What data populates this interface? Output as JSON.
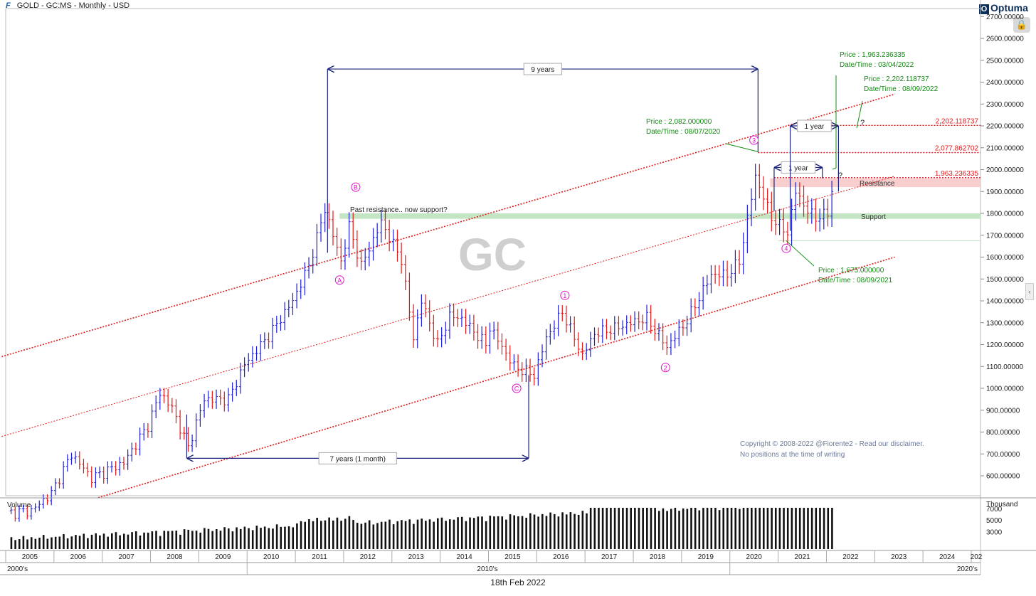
{
  "header": {
    "title": "GOLD - GC:MS - Monthly - USD",
    "brand": "Optuma",
    "brand_icon": "optuma-logo-icon",
    "lock_icon": "lock-icon",
    "collapse_icon": "chevron-left-icon",
    "collapse_glyph": "‹"
  },
  "colors": {
    "up_bar": "#1f1fd6",
    "down_bar": "#e01818",
    "channel": "#e01818",
    "measure": "#1a237e",
    "annotation_green": "#138a13",
    "wave_label": "#e010c8",
    "support_zone": "#b9e0b9",
    "resistance_zone": "#f8c6c6"
  },
  "watermark": "GC",
  "footer": {
    "date": "18th Feb 2022"
  },
  "chart_data": {
    "type": "ohlc",
    "title": "GOLD - GC:MS - Monthly - USD",
    "price_axis": {
      "ylim": [
        500,
        2720
      ],
      "ticks": [
        600,
        700,
        800,
        900,
        1000,
        1100,
        1200,
        1300,
        1400,
        1500,
        1600,
        1700,
        1800,
        1900,
        2000,
        2100,
        2200,
        2300,
        2400,
        2500,
        2600,
        2700
      ],
      "tick_labels": [
        "600.00000",
        "700.00000",
        "800.00000",
        "900.00000",
        "1000.00000",
        "1100.00000",
        "1200.00000",
        "1300.00000",
        "1400.00000",
        "1500.00000",
        "1600.00000",
        "1700.00000",
        "1800.00000",
        "1900.00000",
        "2000.00000",
        "2100.00000",
        "2200.00000",
        "2300.00000",
        "2400.00000",
        "2500.00000",
        "2600.00000",
        "2700.00000"
      ],
      "currency": "USD"
    },
    "time_axis": {
      "years": [
        "2005",
        "2006",
        "2007",
        "2008",
        "2009",
        "2010",
        "2011",
        "2012",
        "2013",
        "2014",
        "2015",
        "2016",
        "2017",
        "2018",
        "2019",
        "2020",
        "2021",
        "2022",
        "2023",
        "2024",
        "202"
      ],
      "decades": [
        "2000's",
        "2010's",
        "2020's"
      ]
    },
    "price_anchors": [
      {
        "date": "2005-01",
        "price": 430
      },
      {
        "date": "2005-07",
        "price": 440
      },
      {
        "date": "2005-12",
        "price": 520
      },
      {
        "date": "2006-05",
        "price": 700
      },
      {
        "date": "2006-10",
        "price": 590
      },
      {
        "date": "2007-06",
        "price": 660
      },
      {
        "date": "2007-12",
        "price": 830
      },
      {
        "date": "2008-03",
        "price": 980
      },
      {
        "date": "2008-06",
        "price": 910
      },
      {
        "date": "2008-10",
        "price": 730
      },
      {
        "date": "2009-02",
        "price": 950
      },
      {
        "date": "2009-08",
        "price": 950
      },
      {
        "date": "2009-12",
        "price": 1110
      },
      {
        "date": "2010-06",
        "price": 1240
      },
      {
        "date": "2010-12",
        "price": 1400
      },
      {
        "date": "2011-04",
        "price": 1560
      },
      {
        "date": "2011-08",
        "price": 1820
      },
      {
        "date": "2011-12",
        "price": 1580
      },
      {
        "date": "2012-02",
        "price": 1740
      },
      {
        "date": "2012-05",
        "price": 1560
      },
      {
        "date": "2012-10",
        "price": 1760
      },
      {
        "date": "2013-03",
        "price": 1590
      },
      {
        "date": "2013-06",
        "price": 1230
      },
      {
        "date": "2013-08",
        "price": 1400
      },
      {
        "date": "2013-12",
        "price": 1200
      },
      {
        "date": "2014-03",
        "price": 1330
      },
      {
        "date": "2014-06",
        "price": 1320
      },
      {
        "date": "2014-12",
        "price": 1200
      },
      {
        "date": "2015-01",
        "price": 1280
      },
      {
        "date": "2015-07",
        "price": 1100
      },
      {
        "date": "2015-12",
        "price": 1060
      },
      {
        "date": "2016-03",
        "price": 1230
      },
      {
        "date": "2016-07",
        "price": 1350
      },
      {
        "date": "2016-12",
        "price": 1150
      },
      {
        "date": "2017-03",
        "price": 1250
      },
      {
        "date": "2017-09",
        "price": 1280
      },
      {
        "date": "2017-12",
        "price": 1300
      },
      {
        "date": "2018-04",
        "price": 1320
      },
      {
        "date": "2018-09",
        "price": 1190
      },
      {
        "date": "2019-02",
        "price": 1310
      },
      {
        "date": "2019-08",
        "price": 1520
      },
      {
        "date": "2019-12",
        "price": 1520
      },
      {
        "date": "2020-03",
        "price": 1580
      },
      {
        "date": "2020-07",
        "price": 1970
      },
      {
        "date": "2020-11",
        "price": 1780
      },
      {
        "date": "2021-03",
        "price": 1710
      },
      {
        "date": "2021-05",
        "price": 1900
      },
      {
        "date": "2021-08",
        "price": 1810
      },
      {
        "date": "2021-10",
        "price": 1780
      },
      {
        "date": "2022-01",
        "price": 1800
      },
      {
        "date": "2022-02",
        "price": 1900
      }
    ],
    "volume": {
      "label": "Volume",
      "unit": "Thousand",
      "ticks": [
        3000,
        5000,
        7000
      ],
      "tick_labels": [
        "3000",
        "5000",
        "7000"
      ],
      "peak": 7200
    },
    "channel_lines": [
      {
        "role": "upper",
        "start": {
          "date": "2004-12",
          "price": 1145
        },
        "end": {
          "date": "2023-06",
          "price": 2345
        }
      },
      {
        "role": "middle",
        "start": {
          "date": "2004-12",
          "price": 780
        },
        "end": {
          "date": "2023-06",
          "price": 1970
        }
      },
      {
        "role": "lower",
        "start": {
          "date": "2006-12",
          "price": 500
        },
        "end": {
          "date": "2023-06",
          "price": 1600
        }
      }
    ],
    "levels": [
      {
        "label": "2,202.118737",
        "price": 2202.118737,
        "from": "2021-10"
      },
      {
        "label": "2,077.862702",
        "price": 2077.862702,
        "from": "2020-08"
      },
      {
        "label": "1,963.236335",
        "price": 1963.236335,
        "from": "2020-12"
      }
    ],
    "zones": [
      {
        "name": "Support",
        "low": 1775,
        "high": 1800,
        "from": "2011-12"
      },
      {
        "name": "Resistance",
        "low": 1920,
        "high": 1960,
        "from": "2020-11"
      }
    ],
    "measures": [
      {
        "label": "9 years",
        "from": "2011-09",
        "to": "2020-08",
        "at_price": 2460
      },
      {
        "label": "7 years (1 month)",
        "from": "2008-10",
        "to": "2015-11",
        "at_price": 680
      },
      {
        "label": "1 year",
        "from": "2020-12",
        "to": "2021-12",
        "at_price": 2010
      },
      {
        "label": "1 year",
        "from": "2021-04",
        "to": "2022-04",
        "at_price": 2200
      }
    ],
    "price_notes": [
      {
        "price_line": "Price : 1,963.236335",
        "date_line": "Date/Time : 03/04/2022"
      },
      {
        "price_line": "Price : 2,202.118737",
        "date_line": "Date/Time : 08/09/2022"
      },
      {
        "price_line": "Price : 2,082.000000",
        "date_line": "Date/Time : 08/07/2020"
      },
      {
        "price_line": "Price : 1,675.000000",
        "date_line": "Date/Time : 08/09/2021"
      }
    ],
    "question_marks": [
      "?",
      "?"
    ],
    "wave_labels": [
      {
        "label": "A",
        "date": "2011-12",
        "price": 1495
      },
      {
        "label": "B",
        "date": "2012-04",
        "price": 1920
      },
      {
        "label": "C",
        "date": "2015-08",
        "price": 1000
      },
      {
        "label": "1",
        "date": "2016-08",
        "price": 1425
      },
      {
        "label": "2",
        "date": "2018-09",
        "price": 1095
      },
      {
        "label": "3",
        "date": "2020-07",
        "price": 2135
      },
      {
        "label": "4",
        "date": "2021-03",
        "price": 1640
      }
    ],
    "annotations": {
      "past_resistance": "Past resistance.. now support?",
      "copyright": "Copyright © 2008-2022 @Fiorente2 -  Read our disclaimer.",
      "disclaimer": "No positions at the time of writing"
    }
  }
}
